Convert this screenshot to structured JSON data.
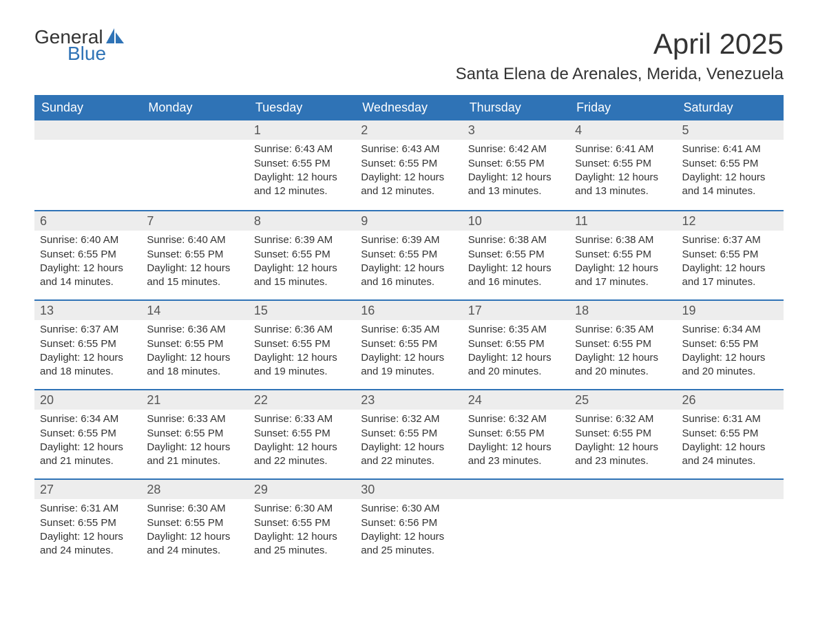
{
  "logo": {
    "word1": "General",
    "word2": "Blue"
  },
  "title": "April 2025",
  "location": "Santa Elena de Arenales, Merida, Venezuela",
  "colors": {
    "header_bg": "#2f73b6",
    "header_text": "#ffffff",
    "daynum_bg": "#ededed",
    "daynum_text": "#555555",
    "body_text": "#333333",
    "rule": "#2f73b6",
    "logo_blue": "#2f73b6",
    "page_bg": "#ffffff"
  },
  "typography": {
    "title_fontsize": 42,
    "location_fontsize": 24,
    "header_fontsize": 18,
    "daynum_fontsize": 18,
    "body_fontsize": 15,
    "logo_fontsize": 28
  },
  "dayHeaders": [
    "Sunday",
    "Monday",
    "Tuesday",
    "Wednesday",
    "Thursday",
    "Friday",
    "Saturday"
  ],
  "weeks": [
    [
      null,
      null,
      {
        "n": "1",
        "sunrise": "6:43 AM",
        "sunset": "6:55 PM",
        "daylight": "12 hours and 12 minutes."
      },
      {
        "n": "2",
        "sunrise": "6:43 AM",
        "sunset": "6:55 PM",
        "daylight": "12 hours and 12 minutes."
      },
      {
        "n": "3",
        "sunrise": "6:42 AM",
        "sunset": "6:55 PM",
        "daylight": "12 hours and 13 minutes."
      },
      {
        "n": "4",
        "sunrise": "6:41 AM",
        "sunset": "6:55 PM",
        "daylight": "12 hours and 13 minutes."
      },
      {
        "n": "5",
        "sunrise": "6:41 AM",
        "sunset": "6:55 PM",
        "daylight": "12 hours and 14 minutes."
      }
    ],
    [
      {
        "n": "6",
        "sunrise": "6:40 AM",
        "sunset": "6:55 PM",
        "daylight": "12 hours and 14 minutes."
      },
      {
        "n": "7",
        "sunrise": "6:40 AM",
        "sunset": "6:55 PM",
        "daylight": "12 hours and 15 minutes."
      },
      {
        "n": "8",
        "sunrise": "6:39 AM",
        "sunset": "6:55 PM",
        "daylight": "12 hours and 15 minutes."
      },
      {
        "n": "9",
        "sunrise": "6:39 AM",
        "sunset": "6:55 PM",
        "daylight": "12 hours and 16 minutes."
      },
      {
        "n": "10",
        "sunrise": "6:38 AM",
        "sunset": "6:55 PM",
        "daylight": "12 hours and 16 minutes."
      },
      {
        "n": "11",
        "sunrise": "6:38 AM",
        "sunset": "6:55 PM",
        "daylight": "12 hours and 17 minutes."
      },
      {
        "n": "12",
        "sunrise": "6:37 AM",
        "sunset": "6:55 PM",
        "daylight": "12 hours and 17 minutes."
      }
    ],
    [
      {
        "n": "13",
        "sunrise": "6:37 AM",
        "sunset": "6:55 PM",
        "daylight": "12 hours and 18 minutes."
      },
      {
        "n": "14",
        "sunrise": "6:36 AM",
        "sunset": "6:55 PM",
        "daylight": "12 hours and 18 minutes."
      },
      {
        "n": "15",
        "sunrise": "6:36 AM",
        "sunset": "6:55 PM",
        "daylight": "12 hours and 19 minutes."
      },
      {
        "n": "16",
        "sunrise": "6:35 AM",
        "sunset": "6:55 PM",
        "daylight": "12 hours and 19 minutes."
      },
      {
        "n": "17",
        "sunrise": "6:35 AM",
        "sunset": "6:55 PM",
        "daylight": "12 hours and 20 minutes."
      },
      {
        "n": "18",
        "sunrise": "6:35 AM",
        "sunset": "6:55 PM",
        "daylight": "12 hours and 20 minutes."
      },
      {
        "n": "19",
        "sunrise": "6:34 AM",
        "sunset": "6:55 PM",
        "daylight": "12 hours and 20 minutes."
      }
    ],
    [
      {
        "n": "20",
        "sunrise": "6:34 AM",
        "sunset": "6:55 PM",
        "daylight": "12 hours and 21 minutes."
      },
      {
        "n": "21",
        "sunrise": "6:33 AM",
        "sunset": "6:55 PM",
        "daylight": "12 hours and 21 minutes."
      },
      {
        "n": "22",
        "sunrise": "6:33 AM",
        "sunset": "6:55 PM",
        "daylight": "12 hours and 22 minutes."
      },
      {
        "n": "23",
        "sunrise": "6:32 AM",
        "sunset": "6:55 PM",
        "daylight": "12 hours and 22 minutes."
      },
      {
        "n": "24",
        "sunrise": "6:32 AM",
        "sunset": "6:55 PM",
        "daylight": "12 hours and 23 minutes."
      },
      {
        "n": "25",
        "sunrise": "6:32 AM",
        "sunset": "6:55 PM",
        "daylight": "12 hours and 23 minutes."
      },
      {
        "n": "26",
        "sunrise": "6:31 AM",
        "sunset": "6:55 PM",
        "daylight": "12 hours and 24 minutes."
      }
    ],
    [
      {
        "n": "27",
        "sunrise": "6:31 AM",
        "sunset": "6:55 PM",
        "daylight": "12 hours and 24 minutes."
      },
      {
        "n": "28",
        "sunrise": "6:30 AM",
        "sunset": "6:55 PM",
        "daylight": "12 hours and 24 minutes."
      },
      {
        "n": "29",
        "sunrise": "6:30 AM",
        "sunset": "6:55 PM",
        "daylight": "12 hours and 25 minutes."
      },
      {
        "n": "30",
        "sunrise": "6:30 AM",
        "sunset": "6:56 PM",
        "daylight": "12 hours and 25 minutes."
      },
      null,
      null,
      null
    ]
  ],
  "labels": {
    "sunrise": "Sunrise:",
    "sunset": "Sunset:",
    "daylight": "Daylight:"
  }
}
